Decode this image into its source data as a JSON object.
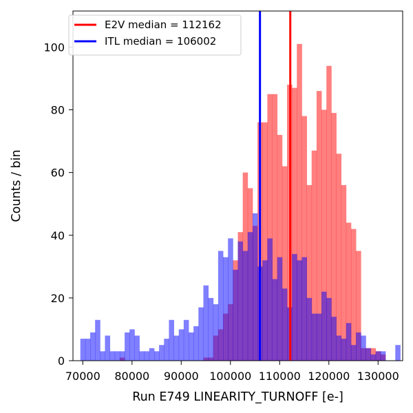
{
  "chart_data": {
    "type": "histogram",
    "xlabel": "Run E749 LINEARITY_TURNOFF [e-]",
    "ylabel": "Counts / bin",
    "xlim": [
      68000,
      135000
    ],
    "ylim": [
      0,
      111.5
    ],
    "xticks": [
      70000,
      80000,
      90000,
      100000,
      110000,
      120000,
      130000
    ],
    "yticks": [
      0,
      20,
      40,
      60,
      80,
      100
    ],
    "grid": false,
    "legend_position": "top-left",
    "bin_start": 69500,
    "bin_width": 1000,
    "series": [
      {
        "name": "E2V",
        "color": "#ff0000",
        "alpha": 0.5,
        "counts": [
          0,
          0,
          0,
          0,
          0,
          0,
          0,
          0,
          1,
          0,
          0,
          0,
          0,
          0,
          0,
          0,
          0,
          0,
          0,
          0,
          0,
          0,
          0,
          0,
          0,
          1,
          1,
          8,
          10,
          15,
          18,
          32,
          41,
          60,
          55,
          43,
          76,
          76,
          85,
          85,
          72,
          62,
          88,
          87,
          101,
          78,
          56,
          67,
          86,
          80,
          94,
          79,
          66,
          56,
          44,
          42,
          35,
          4,
          4,
          4,
          3,
          2,
          0,
          0,
          0
        ],
        "median_label": "E2V median = 112162",
        "median": 112162,
        "median_color": "#ff0000"
      },
      {
        "name": "ITL",
        "color": "#0000ff",
        "alpha": 0.5,
        "counts": [
          7,
          7,
          9,
          13,
          3,
          8,
          3,
          3,
          3,
          9,
          10,
          8,
          3,
          3,
          4,
          3,
          5,
          7,
          13,
          8,
          10,
          13,
          9,
          11,
          17,
          24,
          20,
          18,
          35,
          33,
          39,
          29,
          38,
          35,
          41,
          47,
          30,
          32,
          39,
          26,
          33,
          23,
          17,
          34,
          32,
          33,
          20,
          15,
          15,
          22,
          20,
          14,
          8,
          7,
          12,
          5,
          9,
          8,
          4,
          2,
          3,
          3,
          0,
          0,
          5
        ]
      }
    ],
    "lines": [
      {
        "label": "E2V median = 112162",
        "x": 112162,
        "color": "#ff0000"
      },
      {
        "label": "ITL median = 106002",
        "x": 106002,
        "color": "#0000ff"
      }
    ]
  }
}
